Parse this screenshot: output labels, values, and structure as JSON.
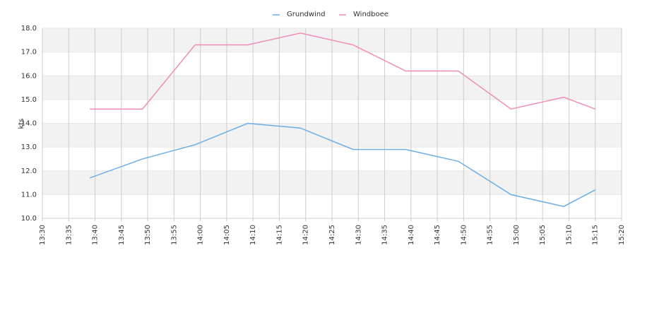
{
  "chart_data": {
    "type": "line",
    "y_label": "kts",
    "x": [
      "13:39",
      "13:49",
      "13:59",
      "14:09",
      "14:19",
      "14:29",
      "14:39",
      "14:49",
      "14:59",
      "15:09",
      "15:15"
    ],
    "series": [
      {
        "name": "Grundwind",
        "color": "#6aaee8",
        "values": [
          11.7,
          12.5,
          13.1,
          14.0,
          13.8,
          12.9,
          12.9,
          12.4,
          11.0,
          10.5,
          11.2
        ]
      },
      {
        "name": "Windboee",
        "color": "#f08cb8",
        "values": [
          14.6,
          14.6,
          17.3,
          17.3,
          17.8,
          17.3,
          16.2,
          16.2,
          14.6,
          15.1,
          14.6
        ]
      }
    ],
    "xlim": [
      "13:30",
      "15:20"
    ],
    "xticks": [
      "13:30",
      "13:35",
      "13:40",
      "13:45",
      "13:50",
      "13:55",
      "14:00",
      "14:05",
      "14:10",
      "14:15",
      "14:20",
      "14:25",
      "14:30",
      "14:35",
      "14:40",
      "14:45",
      "14:50",
      "14:55",
      "15:00",
      "15:05",
      "15:10",
      "15:15",
      "15:20"
    ],
    "ylim": [
      10,
      18
    ],
    "yticks": [
      {
        "value": 10,
        "label": "10.0"
      },
      {
        "value": 11,
        "label": "11.0"
      },
      {
        "value": 12,
        "label": "12.0"
      },
      {
        "value": 13,
        "label": "13.0"
      },
      {
        "value": 14,
        "label": "14.0"
      },
      {
        "value": 15,
        "label": "15.0"
      },
      {
        "value": 16,
        "label": "16.0"
      },
      {
        "value": 17,
        "label": "17.0"
      },
      {
        "value": 18,
        "label": "18.0"
      }
    ],
    "grid": true,
    "legend": "top"
  }
}
